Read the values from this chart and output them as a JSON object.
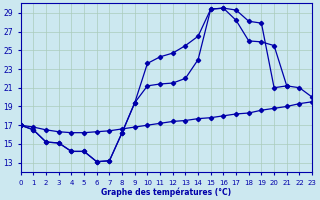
{
  "bg_color": "#cce8f0",
  "grid_color": "#aaccbb",
  "line_color": "#0000aa",
  "xlabel": "Graphe des températures (°C)",
  "xlim": [
    0,
    23
  ],
  "ylim": [
    12,
    30
  ],
  "yticks": [
    13,
    15,
    17,
    19,
    21,
    23,
    25,
    27,
    29
  ],
  "xticks": [
    0,
    1,
    2,
    3,
    4,
    5,
    6,
    7,
    8,
    9,
    10,
    11,
    12,
    13,
    14,
    15,
    16,
    17,
    18,
    19,
    20,
    21,
    22,
    23
  ],
  "series": [
    {
      "x": [
        0,
        1,
        2,
        3,
        4,
        5,
        6,
        7,
        8,
        9,
        10,
        11,
        12,
        13,
        14,
        15,
        16,
        17,
        18,
        19,
        20,
        21
      ],
      "y": [
        17.0,
        16.5,
        15.2,
        15.1,
        14.2,
        14.2,
        13.1,
        13.2,
        16.2,
        19.4,
        23.6,
        24.3,
        24.7,
        25.5,
        26.5,
        29.4,
        29.5,
        29.3,
        28.1,
        27.9,
        21.0,
        21.2
      ]
    },
    {
      "x": [
        0,
        1,
        2,
        3,
        4,
        5,
        6,
        7,
        8,
        9,
        10,
        11,
        12,
        13,
        14,
        15,
        16,
        17,
        18,
        19,
        20,
        21,
        22,
        23
      ],
      "y": [
        17.0,
        16.5,
        15.2,
        15.1,
        14.2,
        14.2,
        13.1,
        13.2,
        16.2,
        19.4,
        21.2,
        21.4,
        21.5,
        22.0,
        24.0,
        29.4,
        29.5,
        28.2,
        26.0,
        25.9,
        25.5,
        21.2,
        21.0,
        20.0
      ]
    },
    {
      "x": [
        0,
        1,
        2,
        3,
        4,
        5,
        6,
        7,
        8,
        9,
        10,
        11,
        12,
        13,
        14,
        15,
        16,
        17,
        18,
        19,
        20,
        21,
        22,
        23
      ],
      "y": [
        17.0,
        16.8,
        16.5,
        16.3,
        16.2,
        16.2,
        16.3,
        16.4,
        16.6,
        16.8,
        17.0,
        17.2,
        17.4,
        17.5,
        17.7,
        17.8,
        18.0,
        18.2,
        18.3,
        18.6,
        18.8,
        19.0,
        19.3,
        19.5
      ]
    }
  ]
}
